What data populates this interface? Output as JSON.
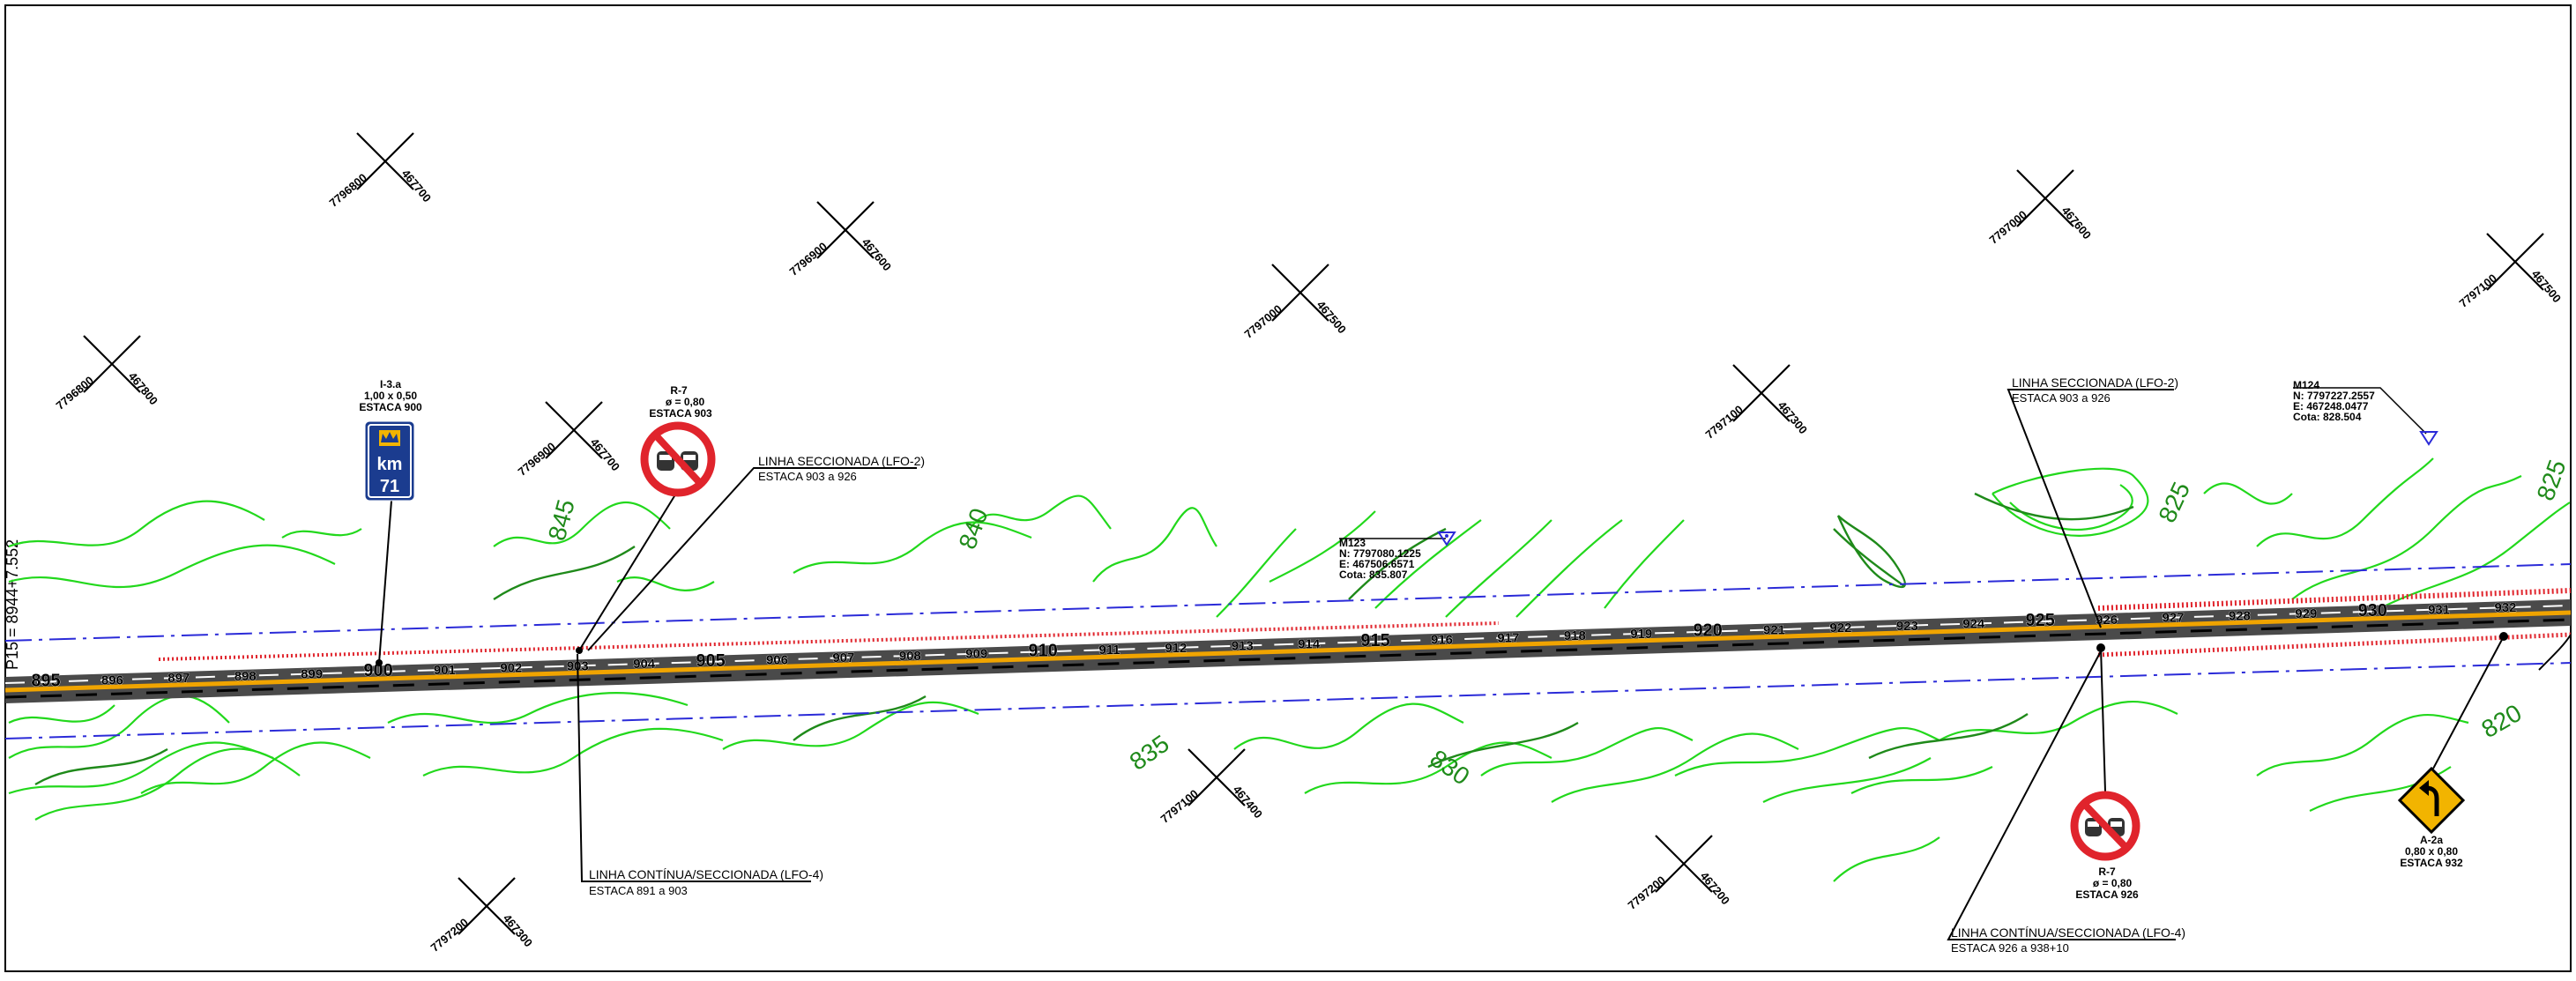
{
  "grid_marks": [
    {
      "n": "7796800",
      "e": "467700"
    },
    {
      "n": "7796800",
      "e": "467800"
    },
    {
      "n": "7796900",
      "e": "467600"
    },
    {
      "n": "7796900",
      "e": "467700"
    },
    {
      "n": "7797000",
      "e": "467500"
    },
    {
      "n": "7797000",
      "e": "467600"
    },
    {
      "n": "7797100",
      "e": "467300"
    },
    {
      "n": "7797100",
      "e": "467400"
    },
    {
      "n": "7797100",
      "e": "467500"
    },
    {
      "n": "7797200",
      "e": "467200"
    },
    {
      "n": "7797200",
      "e": "467300"
    }
  ],
  "edge_text": "P15 = 8944+7.552",
  "stations": [
    "895",
    "896",
    "897",
    "898",
    "899",
    "900",
    "901",
    "902",
    "903",
    "904",
    "905",
    "906",
    "907",
    "908",
    "909",
    "910",
    "911",
    "912",
    "913",
    "914",
    "915",
    "916",
    "917",
    "918",
    "919",
    "920",
    "921",
    "922",
    "923",
    "924",
    "925",
    "926",
    "927",
    "928",
    "929",
    "930",
    "931",
    "932"
  ],
  "contour_labels": [
    "845",
    "840",
    "835",
    "830",
    "825",
    "820",
    "825"
  ],
  "benchmarks": [
    {
      "name": "M123",
      "n": "N:  7797080.1225",
      "e": "E:  467506.6571",
      "cota": "Cota:  835.807"
    },
    {
      "name": "M124",
      "n": "N:  7797227.2557",
      "e": "E:  467248.0477",
      "cota": "Cota:  828.504"
    }
  ],
  "callouts": [
    {
      "title": "LINHA SECCIONADA (LFO-2)",
      "sub": "ESTACA 903 a 926"
    },
    {
      "title": "LINHA CONTÍNUA/SECCIONADA (LFO-4)",
      "sub": "ESTACA 891 a 903"
    },
    {
      "title": "LINHA SECCIONADA (LFO-2)",
      "sub": "ESTACA 903 a 926"
    },
    {
      "title": "LINHA CONTÍNUA/SECCIONADA (LFO-4)",
      "sub": "ESTACA 926 a 938+10"
    }
  ],
  "signs": [
    {
      "code": "I-3.a",
      "size": "1,00  x  0,50",
      "estaca": "ESTACA  900",
      "line1": "km",
      "line2": "71",
      "icon": "km-marker-sign"
    },
    {
      "code": "R-7",
      "size": "ø  =  0,80",
      "estaca": "ESTACA  903",
      "icon": "no-overtaking-sign"
    },
    {
      "code": "R-7",
      "size": "ø  =  0,80",
      "estaca": "ESTACA  926",
      "icon": "no-overtaking-sign"
    },
    {
      "code": "A-2a",
      "size": "0,80  x  0,80",
      "estaca": "ESTACA  932",
      "icon": "curve-left-warning-sign"
    }
  ],
  "colors": {
    "contour": "#22d81c",
    "contour_dark": "#1f8a1a",
    "road": "#4a4a4a",
    "centerline": "#f0a400",
    "offset_line": "#2b2bd8",
    "hatch": "#e0242c",
    "sign_red": "#e0242c",
    "sign_blue": "#1b3c8f",
    "warning_yellow": "#f2b400"
  }
}
